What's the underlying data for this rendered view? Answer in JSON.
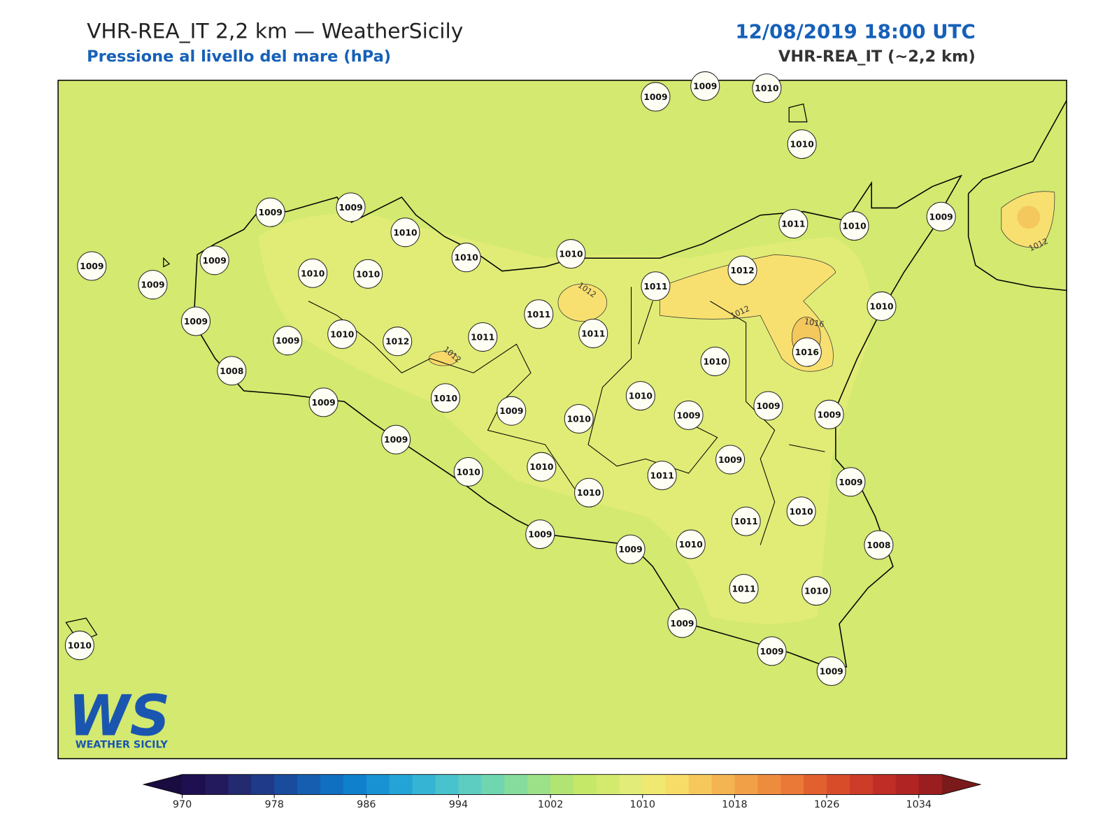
{
  "header": {
    "title": "VHR-REA_IT 2,2 km — WeatherSicily",
    "subtitle": "Pressione al livello del mare (hPa)",
    "datetime": "12/08/2019 18:00 UTC",
    "model": "VHR-REA_IT (~2,2 km)"
  },
  "stations": [
    1009,
    1009,
    1010,
    1010,
    1009,
    1009,
    1010,
    1009,
    1009,
    1009,
    1010,
    1010,
    1010,
    1010,
    1011,
    1010,
    1009,
    1012,
    1011,
    1010,
    1011,
    1011,
    1016,
    1009,
    1009,
    1010,
    1012,
    1011,
    1010,
    1008,
    1009,
    1010,
    1009,
    1010,
    1010,
    1009,
    1009,
    1009,
    1009,
    1010,
    1010,
    1011,
    1009,
    1009,
    1010,
    1011,
    1010,
    1009,
    1009,
    1010,
    1008,
    1011,
    1010,
    1009,
    1009,
    1009,
    1010
  ],
  "contour_labels": [
    "1012",
    "1012",
    "1012",
    "1012",
    "1016"
  ],
  "logo": {
    "mark": "WS",
    "text": "WEATHER SICILY"
  },
  "colorbar": {
    "lim": [
      970,
      1036
    ],
    "ticks": [
      970,
      978,
      986,
      994,
      1002,
      1010,
      1018,
      1026,
      1034
    ],
    "colors": [
      "#1e1050",
      "#221a5c",
      "#232a70",
      "#1f3a88",
      "#1a4c9e",
      "#155eb0",
      "#106fc0",
      "#0e80cc",
      "#1892d2",
      "#24a4d6",
      "#36b4d4",
      "#48c2cc",
      "#5ccdc0",
      "#70d6b0",
      "#86dc9c",
      "#9ce088",
      "#b2e474",
      "#c6e868",
      "#d4ea6e",
      "#e2ec78",
      "#f0e870",
      "#f8dc68",
      "#f6c85c",
      "#f4b452",
      "#f2a048",
      "#ee8c3e",
      "#ea7836",
      "#e2602e",
      "#d84c2a",
      "#cc3c28",
      "#c02c26",
      "#b02424",
      "#9a1e20"
    ],
    "under": "#1a0c40",
    "over": "#7a1a1a"
  }
}
